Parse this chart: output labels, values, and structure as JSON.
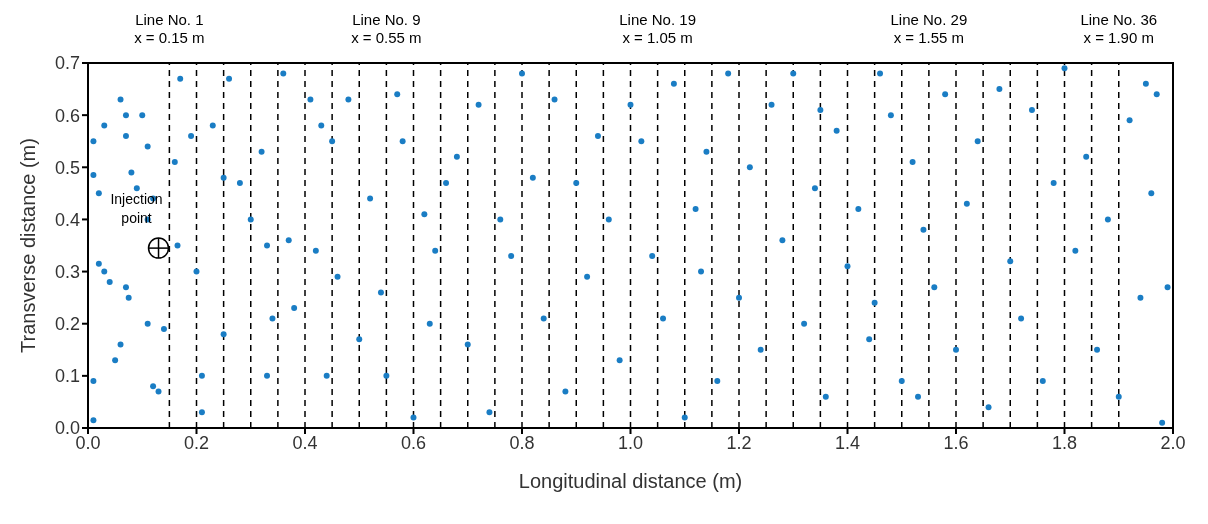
{
  "chart_data": {
    "type": "scatter",
    "xlabel": "Longitudinal distance (m)",
    "ylabel": "Transverse distance (m)",
    "color": "#1a7dc4",
    "marker": "circle",
    "xlim": [
      0,
      2
    ],
    "ylim": [
      0,
      0.7
    ],
    "xticks": [
      {
        "value": 0,
        "label": "0.0"
      },
      {
        "value": 0.2,
        "label": "0.2"
      },
      {
        "value": 0.4,
        "label": "0.4"
      },
      {
        "value": 0.6,
        "label": "0.6"
      },
      {
        "value": 0.8,
        "label": "0.8"
      },
      {
        "value": 1,
        "label": "1.0"
      },
      {
        "value": 1.2,
        "label": "1.2"
      },
      {
        "value": 1.4,
        "label": "1.4"
      },
      {
        "value": 1.6,
        "label": "1.6"
      },
      {
        "value": 1.8,
        "label": "1.8"
      },
      {
        "value": 2,
        "label": "2.0"
      }
    ],
    "yticks": [
      {
        "value": 0,
        "label": "0.0"
      },
      {
        "value": 0.1,
        "label": "0.1"
      },
      {
        "value": 0.2,
        "label": "0.2"
      },
      {
        "value": 0.3,
        "label": "0.3"
      },
      {
        "value": 0.4,
        "label": "0.4"
      },
      {
        "value": 0.5,
        "label": "0.5"
      },
      {
        "value": 0.6,
        "label": "0.6"
      },
      {
        "value": 0.7,
        "label": "0.7"
      }
    ],
    "x": [
      0.01,
      0.01,
      0.02,
      0.03,
      0.02,
      0.03,
      0.04,
      0.01,
      0.01,
      0.06,
      0.07,
      0.07,
      0.08,
      0.07,
      0.075,
      0.06,
      0.05,
      0.1,
      0.09,
      0.11,
      0.12,
      0.11,
      0.12,
      0.13,
      0.11,
      0.14,
      0.17,
      0.16,
      0.165,
      0.19,
      0.2,
      0.21,
      0.21,
      0.23,
      0.25,
      0.26,
      0.28,
      0.3,
      0.32,
      0.33,
      0.34,
      0.36,
      0.37,
      0.38,
      0.41,
      0.42,
      0.43,
      0.44,
      0.46,
      0.48,
      0.5,
      0.52,
      0.54,
      0.55,
      0.57,
      0.58,
      0.6,
      0.62,
      0.64,
      0.66,
      0.68,
      0.7,
      0.72,
      0.74,
      0.76,
      0.78,
      0.8,
      0.82,
      0.84,
      0.86,
      0.88,
      0.9,
      0.92,
      0.94,
      0.96,
      0.98,
      1.0,
      1.02,
      1.04,
      1.06,
      1.08,
      1.1,
      1.12,
      1.14,
      1.16,
      1.18,
      1.2,
      1.22,
      1.24,
      1.26,
      1.28,
      1.3,
      1.32,
      1.34,
      1.36,
      1.38,
      1.4,
      1.42,
      1.44,
      1.46,
      1.48,
      1.5,
      1.52,
      1.54,
      1.56,
      1.58,
      1.6,
      1.62,
      1.64,
      1.66,
      1.68,
      1.7,
      1.72,
      1.74,
      1.76,
      1.78,
      1.8,
      1.82,
      1.84,
      1.86,
      1.88,
      1.9,
      1.92,
      1.94,
      1.96,
      1.98,
      1.99,
      1.97,
      1.95,
      1.35,
      0.45,
      0.25,
      0.33,
      0.63,
      1.13,
      1.53,
      1.45
    ],
    "values": [
      0.55,
      0.485,
      0.45,
      0.58,
      0.315,
      0.3,
      0.28,
      0.09,
      0.015,
      0.63,
      0.6,
      0.56,
      0.49,
      0.27,
      0.25,
      0.16,
      0.13,
      0.6,
      0.46,
      0.54,
      0.44,
      0.4,
      0.08,
      0.07,
      0.2,
      0.19,
      0.67,
      0.51,
      0.35,
      0.56,
      0.3,
      0.1,
      0.03,
      0.58,
      0.18,
      0.67,
      0.47,
      0.4,
      0.53,
      0.35,
      0.21,
      0.68,
      0.36,
      0.23,
      0.63,
      0.34,
      0.58,
      0.1,
      0.29,
      0.63,
      0.17,
      0.44,
      0.26,
      0.1,
      0.64,
      0.55,
      0.02,
      0.41,
      0.34,
      0.47,
      0.52,
      0.16,
      0.62,
      0.03,
      0.4,
      0.33,
      0.68,
      0.48,
      0.21,
      0.63,
      0.07,
      0.47,
      0.29,
      0.56,
      0.4,
      0.13,
      0.62,
      0.55,
      0.33,
      0.21,
      0.66,
      0.02,
      0.42,
      0.53,
      0.09,
      0.68,
      0.25,
      0.5,
      0.15,
      0.62,
      0.36,
      0.68,
      0.2,
      0.46,
      0.06,
      0.57,
      0.31,
      0.42,
      0.17,
      0.68,
      0.6,
      0.09,
      0.51,
      0.38,
      0.27,
      0.64,
      0.15,
      0.43,
      0.55,
      0.04,
      0.65,
      0.32,
      0.21,
      0.61,
      0.09,
      0.47,
      0.69,
      0.34,
      0.52,
      0.15,
      0.4,
      0.06,
      0.59,
      0.25,
      0.45,
      0.01,
      0.27,
      0.64,
      0.66,
      0.61,
      0.55,
      0.48,
      0.1,
      0.2,
      0.3,
      0.06,
      0.24
    ],
    "ref_lines": [
      {
        "axis": "x",
        "value": 0.15,
        "label": "Line No. 1\nx = 0.15 m",
        "line_style": "dashed"
      },
      {
        "axis": "x",
        "value": 0.2,
        "line_style": "dashed"
      },
      {
        "axis": "x",
        "value": 0.25,
        "line_style": "dashed"
      },
      {
        "axis": "x",
        "value": 0.3,
        "line_style": "dashed"
      },
      {
        "axis": "x",
        "value": 0.35,
        "line_style": "dashed"
      },
      {
        "axis": "x",
        "value": 0.4,
        "line_style": "dashed"
      },
      {
        "axis": "x",
        "value": 0.45,
        "line_style": "dashed"
      },
      {
        "axis": "x",
        "value": 0.5,
        "line_style": "dashed"
      },
      {
        "axis": "x",
        "value": 0.55,
        "label": "Line No. 9\nx = 0.55 m",
        "line_style": "dashed"
      },
      {
        "axis": "x",
        "value": 0.6,
        "line_style": "dashed"
      },
      {
        "axis": "x",
        "value": 0.65,
        "line_style": "dashed"
      },
      {
        "axis": "x",
        "value": 0.7,
        "line_style": "dashed"
      },
      {
        "axis": "x",
        "value": 0.75,
        "line_style": "dashed"
      },
      {
        "axis": "x",
        "value": 0.8,
        "line_style": "dashed"
      },
      {
        "axis": "x",
        "value": 0.85,
        "line_style": "dashed"
      },
      {
        "axis": "x",
        "value": 0.9,
        "line_style": "dashed"
      },
      {
        "axis": "x",
        "value": 0.95,
        "line_style": "dashed"
      },
      {
        "axis": "x",
        "value": 1.0,
        "line_style": "dashed"
      },
      {
        "axis": "x",
        "value": 1.05,
        "label": "Line No. 19\nx = 1.05 m",
        "line_style": "dashed"
      },
      {
        "axis": "x",
        "value": 1.1,
        "line_style": "dashed"
      },
      {
        "axis": "x",
        "value": 1.15,
        "line_style": "dashed"
      },
      {
        "axis": "x",
        "value": 1.2,
        "line_style": "dashed"
      },
      {
        "axis": "x",
        "value": 1.25,
        "line_style": "dashed"
      },
      {
        "axis": "x",
        "value": 1.3,
        "line_style": "dashed"
      },
      {
        "axis": "x",
        "value": 1.35,
        "line_style": "dashed"
      },
      {
        "axis": "x",
        "value": 1.4,
        "line_style": "dashed"
      },
      {
        "axis": "x",
        "value": 1.45,
        "line_style": "dashed"
      },
      {
        "axis": "x",
        "value": 1.5,
        "line_style": "dashed"
      },
      {
        "axis": "x",
        "value": 1.55,
        "label": "Line No. 29\nx = 1.55 m",
        "line_style": "dashed"
      },
      {
        "axis": "x",
        "value": 1.6,
        "line_style": "dashed"
      },
      {
        "axis": "x",
        "value": 1.65,
        "line_style": "dashed"
      },
      {
        "axis": "x",
        "value": 1.7,
        "line_style": "dashed"
      },
      {
        "axis": "x",
        "value": 1.75,
        "line_style": "dashed"
      },
      {
        "axis": "x",
        "value": 1.8,
        "line_style": "dashed"
      },
      {
        "axis": "x",
        "value": 1.85,
        "line_style": "dashed"
      },
      {
        "axis": "x",
        "value": 1.9,
        "label": "Line No. 36\nx = 1.90 m",
        "line_style": "dashed"
      }
    ],
    "annotations": [
      {
        "text": "Injection\npoint",
        "x": 0.13,
        "y": 0.345
      }
    ]
  }
}
